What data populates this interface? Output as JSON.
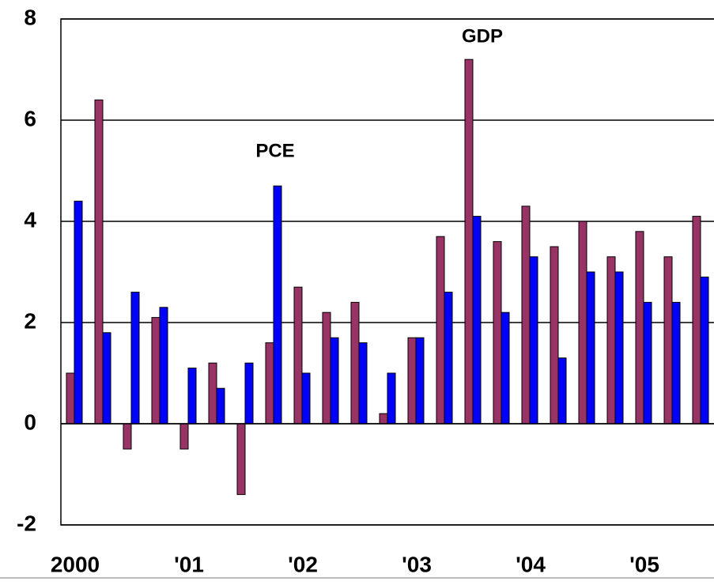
{
  "chart_data": {
    "type": "bar",
    "categories": [
      "2000",
      null,
      null,
      null,
      "'01",
      null,
      null,
      null,
      "'02",
      null,
      null,
      null,
      "'03",
      null,
      null,
      null,
      "'04",
      null,
      null,
      null,
      "'05",
      null,
      null
    ],
    "series": [
      {
        "name": "GDP",
        "color": "#993366",
        "values": [
          1.0,
          6.4,
          -0.5,
          2.1,
          -0.5,
          1.2,
          -1.4,
          1.6,
          2.7,
          2.2,
          2.4,
          0.2,
          1.7,
          3.7,
          7.2,
          3.6,
          4.3,
          3.5,
          4.0,
          3.3,
          3.8,
          3.3,
          4.1
        ]
      },
      {
        "name": "PCE",
        "color": "#0000ff",
        "values": [
          4.4,
          1.8,
          2.6,
          2.3,
          1.1,
          0.7,
          1.2,
          4.7,
          1.0,
          1.7,
          1.6,
          1.0,
          1.7,
          2.6,
          4.1,
          2.2,
          3.3,
          1.3,
          3.0,
          3.0,
          2.4,
          2.4,
          2.9
        ]
      }
    ],
    "ylim": [
      -2,
      8
    ],
    "yticks": [
      -2,
      0,
      2,
      4,
      6,
      8
    ],
    "grid": true
  }
}
